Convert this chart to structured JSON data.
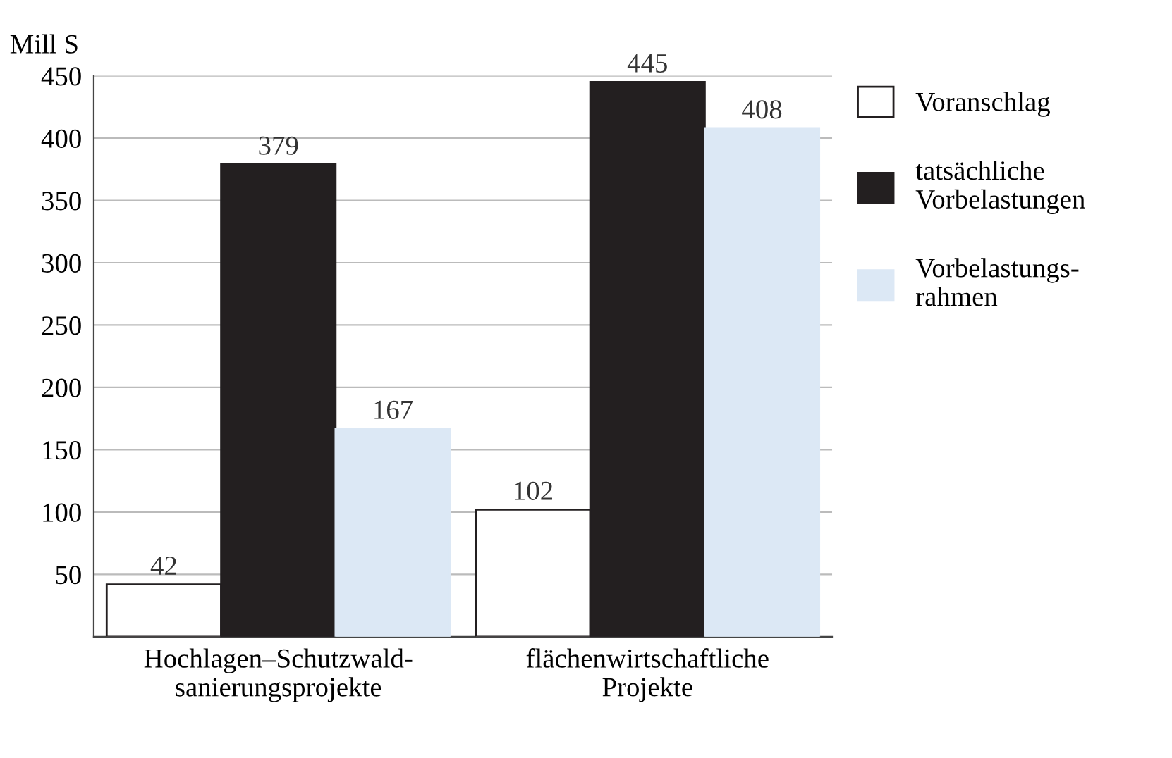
{
  "chart_data": {
    "type": "bar",
    "ylabel": "Mill S",
    "categories": [
      "Hochlagen–Schutzwald-\nsanierungsprojekte",
      "flächenwirtschaftliche\nProjekte"
    ],
    "series": [
      {
        "name": "Voranschlag",
        "color": "#ffffff",
        "values": [
          42,
          102
        ]
      },
      {
        "name": "tatsächliche\nVorbelastungen",
        "color": "#231f20",
        "values": [
          379,
          445
        ]
      },
      {
        "name": "Vorbelastungs-\nrahmen",
        "color": "#dce8f5",
        "values": [
          167,
          408
        ]
      }
    ],
    "ylim": [
      0,
      450
    ],
    "yticks": [
      50,
      100,
      150,
      200,
      250,
      300,
      350,
      400,
      450
    ],
    "grid": "y",
    "legend": "right",
    "data_labels": true
  }
}
